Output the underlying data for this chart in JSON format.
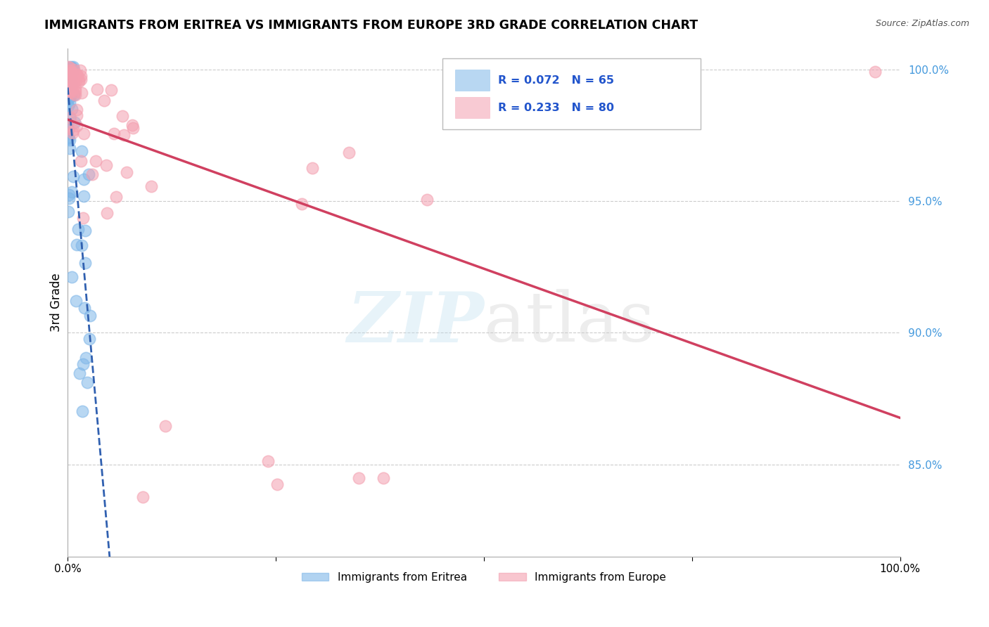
{
  "title": "IMMIGRANTS FROM ERITREA VS IMMIGRANTS FROM EUROPE 3RD GRADE CORRELATION CHART",
  "source": "Source: ZipAtlas.com",
  "ylabel": "3rd Grade",
  "legend_eritrea": "Immigrants from Eritrea",
  "legend_europe": "Immigrants from Europe",
  "R_eritrea": 0.072,
  "N_eritrea": 65,
  "R_europe": 0.233,
  "N_europe": 80,
  "color_eritrea": "#7EB6E8",
  "color_europe": "#F4A0B0",
  "line_color_eritrea": "#3060B0",
  "line_color_europe": "#D04060",
  "background_color": "#FFFFFF",
  "grid_color": "#CCCCCC",
  "ytick_values": [
    0.85,
    0.9,
    0.95,
    1.0
  ],
  "ytick_labels": [
    "85.0%",
    "90.0%",
    "95.0%",
    "100.0%"
  ],
  "ymin": 0.815,
  "ymax": 1.008,
  "xmin": 0.0,
  "xmax": 1.0
}
